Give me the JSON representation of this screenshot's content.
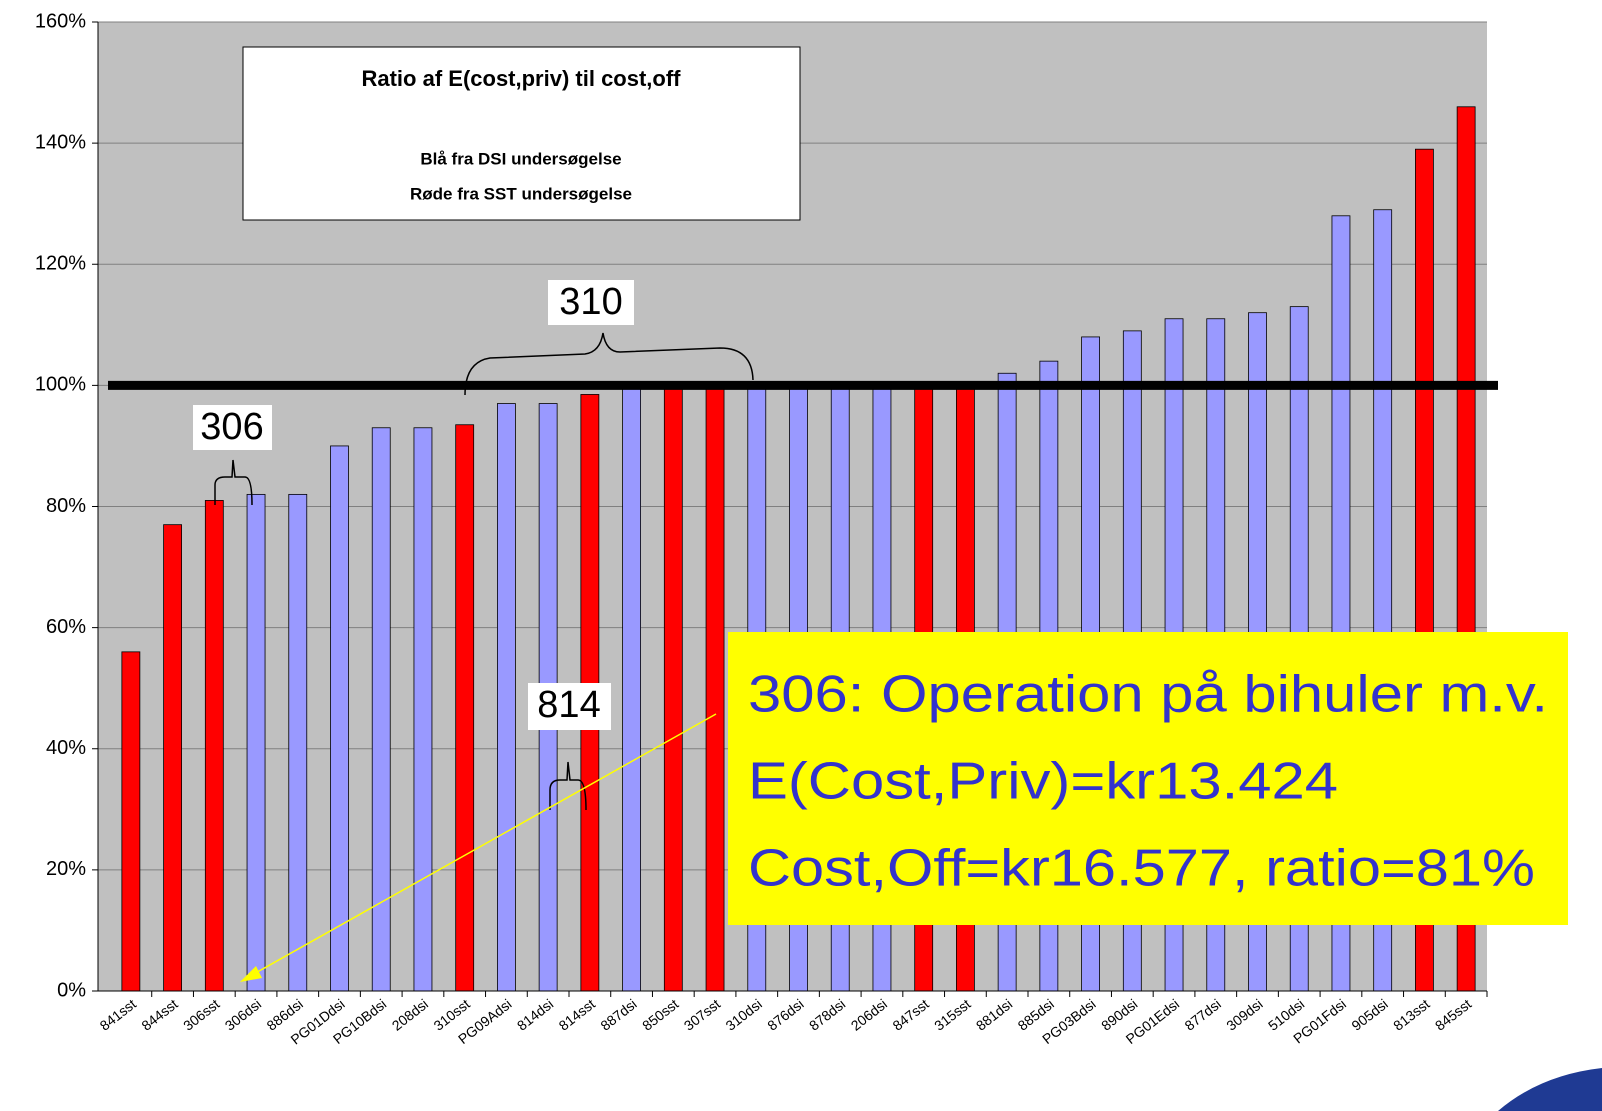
{
  "chart_data": {
    "type": "bar",
    "categories": [
      "841sst",
      "844sst",
      "306sst",
      "306dsi",
      "886dsi",
      "PG01Ddsi",
      "PG10Bdsi",
      "208dsi",
      "310sst",
      "PG09Adsi",
      "814dsi",
      "814sst",
      "887dsi",
      "850sst",
      "307sst",
      "310dsi",
      "876dsi",
      "878dsi",
      "206dsi",
      "847sst",
      "315sst",
      "881dsi",
      "885dsi",
      "PG03Bdsi",
      "890dsi",
      "PG01Edsi",
      "877dsi",
      "309dsi",
      "510dsi",
      "PG01Fdsi",
      "905dsi",
      "813sst",
      "845sst"
    ],
    "values": [
      56,
      77,
      81,
      82,
      82,
      90,
      93,
      93,
      93.5,
      97,
      97,
      98.5,
      100,
      100,
      100,
      100,
      100,
      100,
      100,
      100,
      100,
      102,
      104,
      108,
      109,
      111,
      111,
      112,
      113,
      128,
      129,
      139,
      146
    ],
    "colors": [
      "#ff0000",
      "#ff0000",
      "#ff0000",
      "#9999ff",
      "#9999ff",
      "#9999ff",
      "#9999ff",
      "#9999ff",
      "#ff0000",
      "#9999ff",
      "#9999ff",
      "#ff0000",
      "#9999ff",
      "#ff0000",
      "#ff0000",
      "#9999ff",
      "#9999ff",
      "#9999ff",
      "#9999ff",
      "#ff0000",
      "#ff0000",
      "#9999ff",
      "#9999ff",
      "#9999ff",
      "#9999ff",
      "#9999ff",
      "#9999ff",
      "#9999ff",
      "#9999ff",
      "#9999ff",
      "#9999ff",
      "#ff0000",
      "#ff0000"
    ],
    "ylim": [
      0,
      160
    ],
    "yticks": [
      {
        "value": 0,
        "label": "0%"
      },
      {
        "value": 20,
        "label": "20%"
      },
      {
        "value": 40,
        "label": "40%"
      },
      {
        "value": 60,
        "label": "60%"
      },
      {
        "value": 80,
        "label": "80%"
      },
      {
        "value": 100,
        "label": "100%"
      },
      {
        "value": 120,
        "label": "120%"
      },
      {
        "value": 140,
        "label": "140%"
      },
      {
        "value": 160,
        "label": "160%"
      }
    ],
    "grid": true,
    "reference_line": 100,
    "legend_box": {
      "title": "Ratio af E(cost,priv) til cost,off",
      "lines": [
        "Blå fra DSI undersøgelse",
        "Røde fra SST undersøgelse"
      ]
    },
    "annotations": [
      "310",
      "306",
      "814"
    ],
    "callout": [
      "306: Operation på bihuler m.v.",
      "E(Cost,Priv)=kr13.424",
      "Cost,Off=kr16.577, ratio=81%"
    ]
  }
}
